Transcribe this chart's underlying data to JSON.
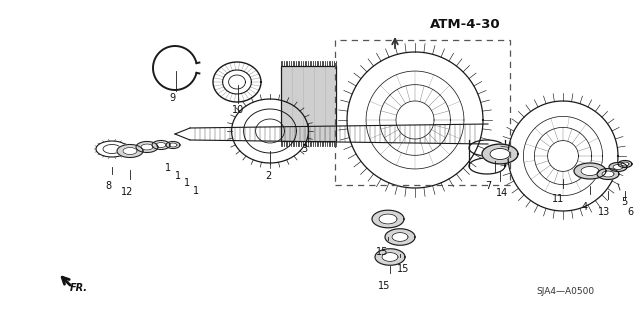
{
  "title": "ATM-4-30",
  "doc_ref": "SJA4—A0500",
  "bg_color": "#f5f5f0",
  "line_color": "#1a1a1a",
  "white": "#ffffff",
  "gray_fill": "#c8c8c8",
  "dark_fill": "#4a4a4a",
  "mid_fill": "#888888",
  "fig_width": 6.4,
  "fig_height": 3.19,
  "dpi": 100
}
